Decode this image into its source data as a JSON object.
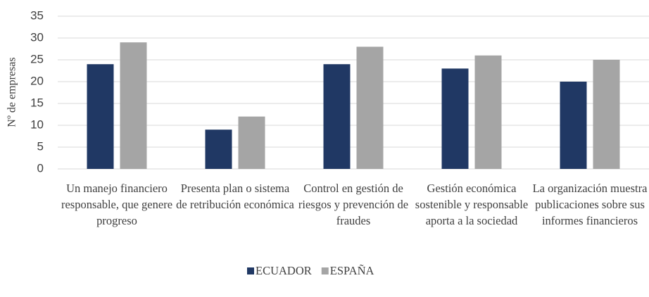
{
  "chart_data": {
    "type": "bar",
    "y_label": "Nº de empresas",
    "categories": [
      "Un manejo financiero responsable, que genere progreso",
      "Presenta plan o sistema de retribución económica",
      "Control en gestión de riesgos y prevención de fraudes",
      "Gestión económica sostenible y responsable aporta a la sociedad",
      "La organización muestra publicaciones sobre sus informes financieros"
    ],
    "series": [
      {
        "name": "ECUADOR",
        "color": "#203864",
        "values": [
          24,
          9,
          24,
          23,
          20
        ]
      },
      {
        "name": "ESPAÑA",
        "color": "#a5a5a5",
        "values": [
          29,
          12,
          28,
          26,
          25
        ]
      }
    ],
    "ylim": [
      0,
      35
    ],
    "yticks": [
      0,
      5,
      10,
      15,
      20,
      25,
      30,
      35
    ],
    "grid": true,
    "legend": "bottom"
  }
}
